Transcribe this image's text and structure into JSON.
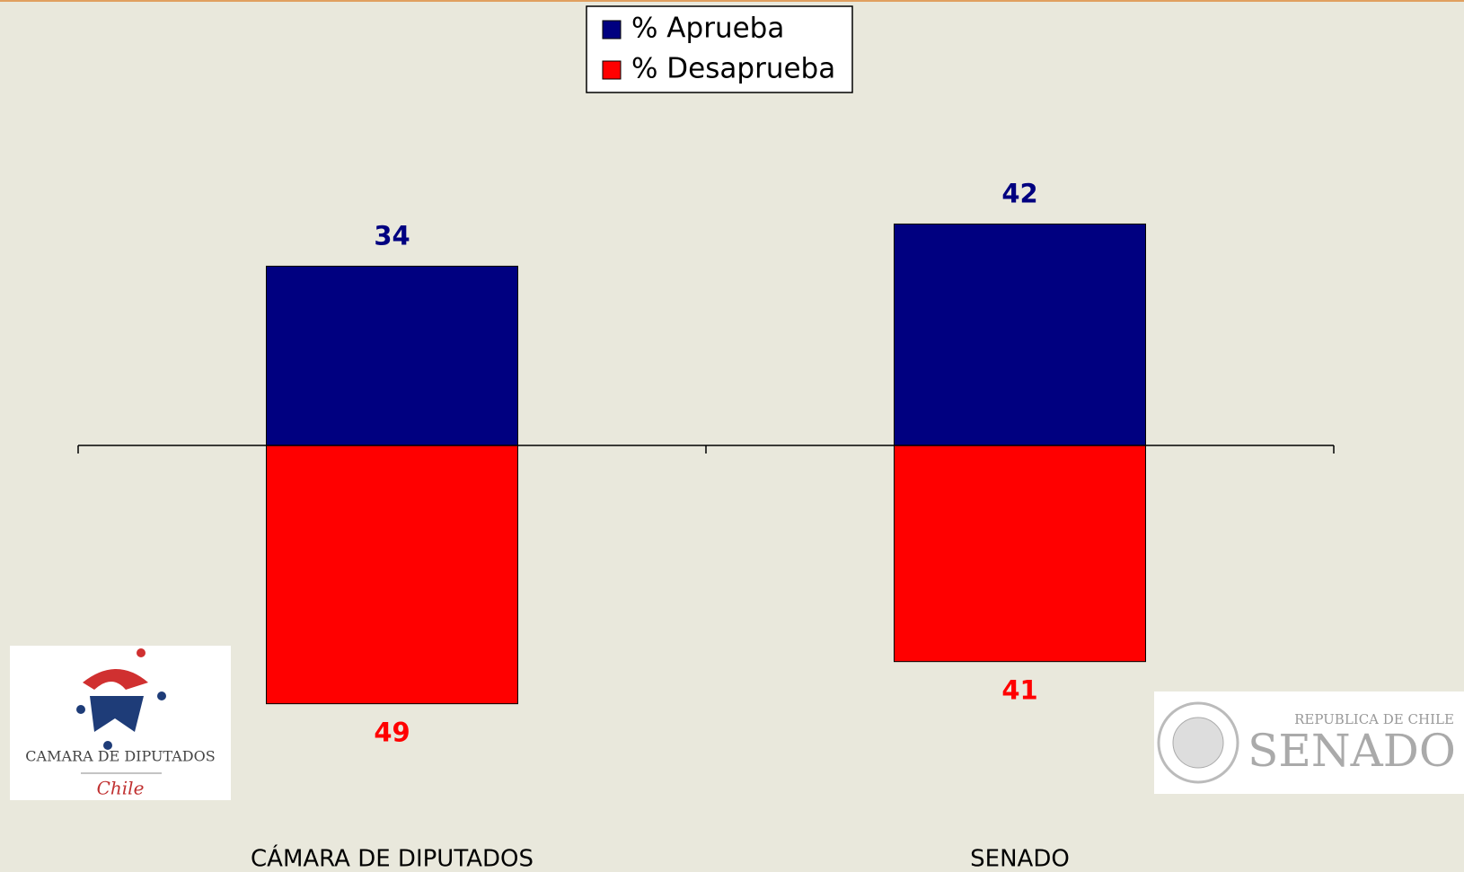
{
  "chart_data": {
    "type": "diverging_bar",
    "categories": [
      "CÁMARA DE DIPUTADOS",
      "SENADO"
    ],
    "series": [
      {
        "name": "% Aprueba",
        "color": "#000080",
        "values": [
          34,
          42
        ]
      },
      {
        "name": "% Desaprueba",
        "color": "#ff0000",
        "values": [
          49,
          41
        ]
      }
    ]
  },
  "logos": {
    "camara": {
      "title": "CAMARA DE DIPUTADOS",
      "subtitle": "Chile"
    },
    "senado": {
      "title": "SENADO",
      "subtitle": "REPUBLICA DE CHILE"
    }
  }
}
